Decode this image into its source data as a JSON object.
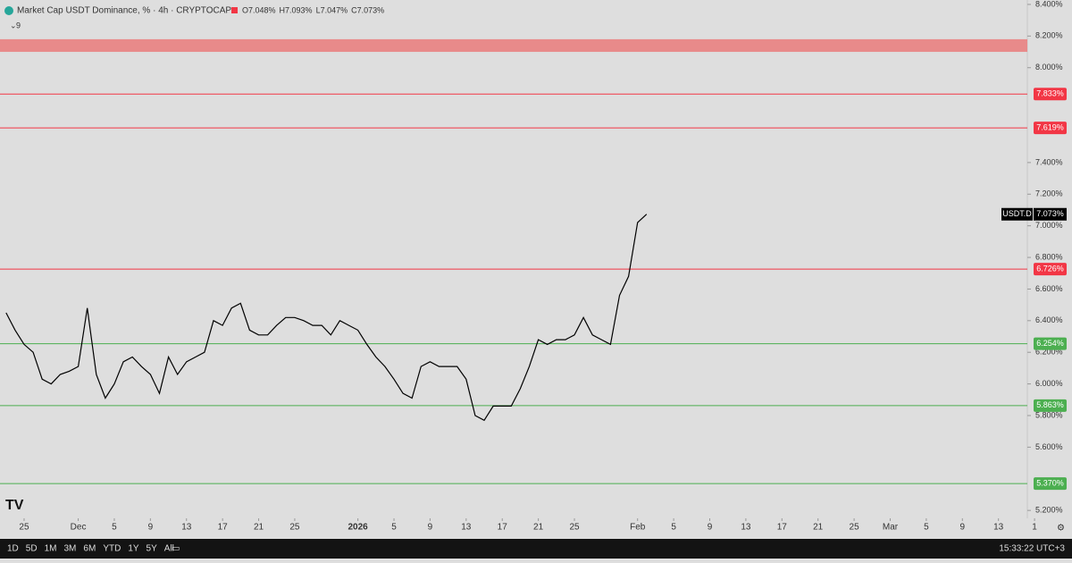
{
  "chart_data": {
    "type": "line",
    "title": "Market Cap USDT Dominance, % · 4h · CRYPTOCAP",
    "ohlc": [
      "O7.048%",
      "H7.093%",
      "L7.047%",
      "C7.073%"
    ],
    "indicator_count": "9",
    "x": [
      -2,
      -1,
      0,
      1,
      2,
      3,
      4,
      5,
      6,
      7,
      8,
      9,
      10,
      11,
      12,
      13,
      14,
      15,
      16,
      17,
      18,
      19,
      20,
      21,
      22,
      23,
      24,
      25,
      26,
      27,
      28,
      29,
      30,
      31,
      32,
      33,
      34,
      35,
      36,
      37,
      38,
      39,
      40,
      41,
      42,
      43,
      44,
      45,
      46,
      47,
      48,
      49,
      50,
      51,
      52,
      53,
      54,
      55,
      56,
      57,
      58,
      59,
      60,
      61,
      62,
      63,
      64,
      65,
      66,
      67,
      68,
      69
    ],
    "series": [
      {
        "name": "USDT.D",
        "color": "#000000",
        "values": [
          6.45,
          6.34,
          6.25,
          6.2,
          6.03,
          6.0,
          6.06,
          6.08,
          6.11,
          6.48,
          6.06,
          5.91,
          6.0,
          6.14,
          6.17,
          6.11,
          6.06,
          5.94,
          6.17,
          6.06,
          6.14,
          6.17,
          6.2,
          6.4,
          6.37,
          6.48,
          6.51,
          6.34,
          6.31,
          6.31,
          6.37,
          6.42,
          6.42,
          6.4,
          6.37,
          6.37,
          6.31,
          6.4,
          6.37,
          6.34,
          6.25,
          6.17,
          6.11,
          6.03,
          5.94,
          5.91,
          6.11,
          6.14,
          6.11,
          6.11,
          6.11,
          6.03,
          5.8,
          5.77,
          5.86,
          5.86,
          5.86,
          5.97,
          6.11,
          6.28,
          6.25,
          6.28,
          6.28,
          6.31,
          6.42,
          6.31,
          6.28,
          6.25,
          6.56,
          6.68,
          7.02,
          7.073
        ]
      }
    ],
    "last_value": 7.073,
    "last_label": "7.073%",
    "xlim": [
      -2.67,
      111.2
    ],
    "ylim": [
      5.15,
      8.428
    ],
    "xticks": [
      {
        "value": 0,
        "label": "25"
      },
      {
        "value": 6,
        "label": "Dec"
      },
      {
        "value": 10,
        "label": "5"
      },
      {
        "value": 14,
        "label": "9"
      },
      {
        "value": 18,
        "label": "13"
      },
      {
        "value": 22,
        "label": "17"
      },
      {
        "value": 26,
        "label": "21"
      },
      {
        "value": 30,
        "label": "25"
      },
      {
        "value": 37,
        "label": "2026"
      },
      {
        "value": 41,
        "label": "5"
      },
      {
        "value": 45,
        "label": "9"
      },
      {
        "value": 49,
        "label": "13"
      },
      {
        "value": 53,
        "label": "17"
      },
      {
        "value": 57,
        "label": "21"
      },
      {
        "value": 61,
        "label": "25"
      },
      {
        "value": 68,
        "label": "Feb"
      },
      {
        "value": 72,
        "label": "5"
      },
      {
        "value": 76,
        "label": "9"
      },
      {
        "value": 80,
        "label": "13"
      },
      {
        "value": 84,
        "label": "17"
      },
      {
        "value": 88,
        "label": "21"
      },
      {
        "value": 92,
        "label": "25"
      },
      {
        "value": 96,
        "label": "Mar"
      },
      {
        "value": 100,
        "label": "5"
      },
      {
        "value": 104,
        "label": "9"
      },
      {
        "value": 108,
        "label": "13"
      },
      {
        "value": 112,
        "label": "1"
      }
    ],
    "yticks": [
      {
        "value": 5.2,
        "label": "5.200%"
      },
      {
        "value": 5.6,
        "label": "5.600%"
      },
      {
        "value": 5.8,
        "label": "5.800%"
      },
      {
        "value": 6.0,
        "label": "6.000%"
      },
      {
        "value": 6.2,
        "label": "6.200%"
      },
      {
        "value": 6.4,
        "label": "6.400%"
      },
      {
        "value": 6.6,
        "label": "6.600%"
      },
      {
        "value": 6.8,
        "label": "6.800%"
      },
      {
        "value": 7.0,
        "label": "7.000%"
      },
      {
        "value": 7.2,
        "label": "7.200%"
      },
      {
        "value": 7.4,
        "label": "7.400%"
      },
      {
        "value": 8.0,
        "label": "8.000%"
      },
      {
        "value": 8.2,
        "label": "8.200%"
      },
      {
        "value": 8.4,
        "label": "8.400%"
      }
    ],
    "zone": {
      "range": [
        8.1,
        8.18
      ],
      "color": "#e88a8a"
    },
    "levels": [
      {
        "value": 7.833,
        "label": "7.833%",
        "color": "#f23645"
      },
      {
        "value": 7.619,
        "label": "7.619%",
        "color": "#f23645"
      },
      {
        "value": 6.726,
        "label": "6.726%",
        "color": "#f23645"
      },
      {
        "value": 6.254,
        "label": "6.254%",
        "color": "#4caf50"
      },
      {
        "value": 5.863,
        "label": "5.863%",
        "color": "#4caf50"
      },
      {
        "value": 5.37,
        "label": "5.370%",
        "color": "#4caf50"
      }
    ],
    "periods": [
      "1D",
      "5D",
      "1M",
      "3M",
      "6M",
      "YTD",
      "1Y",
      "5Y",
      "All"
    ],
    "clock": "15:33:22 UTC+3"
  }
}
